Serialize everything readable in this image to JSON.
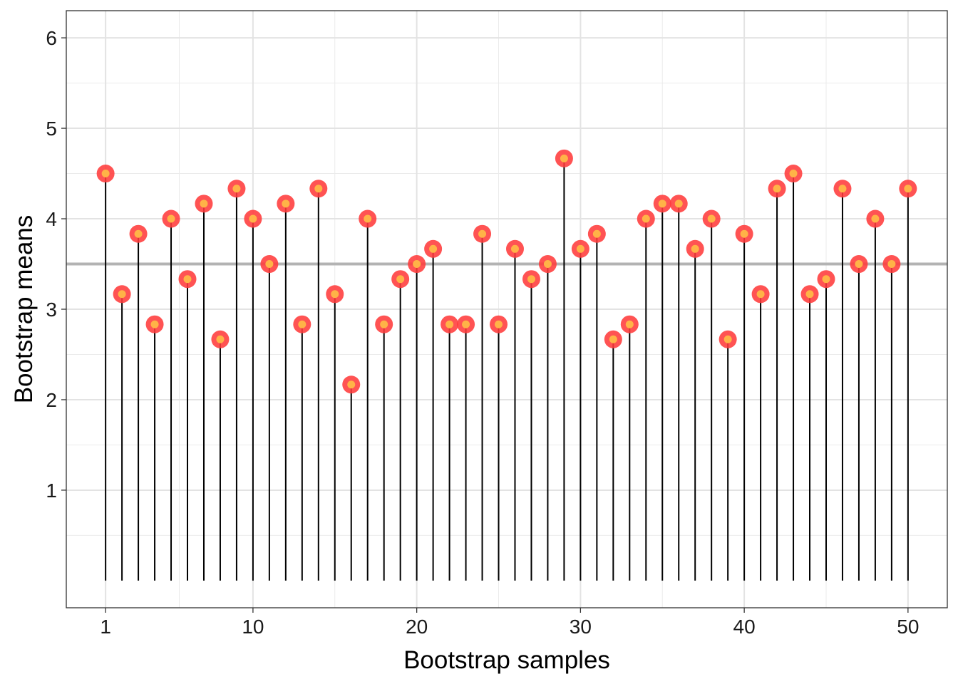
{
  "chart_data": {
    "type": "lollipop",
    "title": "",
    "xlabel": "Bootstrap samples",
    "ylabel": "Bootstrap means",
    "xlim": [
      -1.4,
      52.4
    ],
    "ylim": [
      -0.3,
      6.3
    ],
    "stem_baseline": 0,
    "x_ticks": [
      1,
      10,
      20,
      30,
      40,
      50
    ],
    "y_ticks": [
      1,
      2,
      3,
      4,
      5,
      6
    ],
    "grid": true,
    "reference_line": {
      "y": 3.5,
      "color": "#b3b3b3"
    },
    "colors": {
      "stem": "#000000",
      "point_outer": "#ff3b3b",
      "point_inner": "#ffb347"
    },
    "series": [
      {
        "x": [
          1,
          2,
          3,
          4,
          5,
          6,
          7,
          8,
          9,
          10,
          11,
          12,
          13,
          14,
          15,
          16,
          17,
          18,
          19,
          20,
          21,
          22,
          23,
          24,
          25,
          26,
          27,
          28,
          29,
          30,
          31,
          32,
          33,
          34,
          35,
          36,
          37,
          38,
          39,
          40,
          41,
          42,
          43,
          44,
          45,
          46,
          47,
          48,
          49,
          50
        ],
        "values": [
          4.5,
          3.167,
          3.833,
          2.833,
          4.0,
          3.333,
          4.167,
          2.667,
          4.333,
          4.0,
          3.5,
          4.167,
          2.833,
          4.333,
          3.167,
          2.167,
          4.0,
          2.833,
          3.333,
          3.5,
          3.667,
          2.833,
          2.833,
          3.833,
          2.833,
          3.667,
          3.333,
          3.5,
          4.667,
          3.667,
          3.833,
          2.667,
          2.833,
          4.0,
          4.167,
          4.167,
          3.667,
          4.0,
          2.667,
          3.833,
          3.167,
          4.333,
          4.5,
          3.167,
          3.333,
          4.333,
          3.5,
          4.0,
          3.5,
          4.333
        ]
      }
    ]
  }
}
